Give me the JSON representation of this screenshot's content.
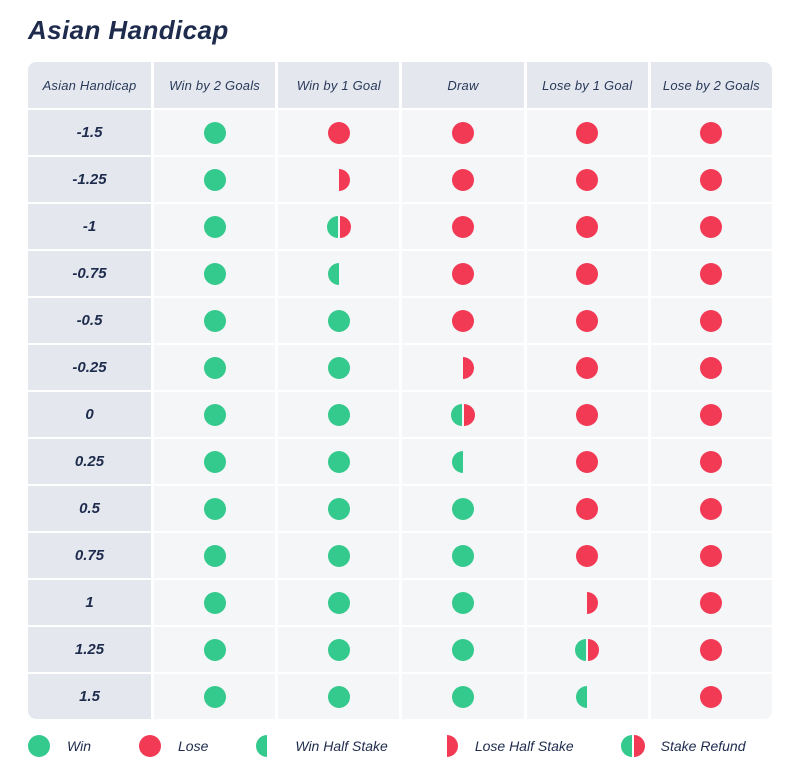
{
  "title": "Asian Handicap",
  "colors": {
    "win_green": "#34c98d",
    "lose_red": "#f23a55",
    "text_navy": "#1e2b4d",
    "header_bg": "#e4e8ee",
    "cell_bg": "#f5f6f8"
  },
  "chart_data": {
    "type": "table",
    "title": "Asian Handicap",
    "columns": [
      "Asian Handicap",
      "Win by 2 Goals",
      "Win by 1 Goal",
      "Draw",
      "Lose by 1 Goal",
      "Lose by 2 Goals"
    ],
    "outcome_values": [
      "win",
      "lose",
      "win-half",
      "lose-half",
      "refund"
    ],
    "rows": [
      {
        "handicap": "-1.5",
        "outcomes": [
          "win",
          "lose",
          "lose",
          "lose",
          "lose"
        ]
      },
      {
        "handicap": "-1.25",
        "outcomes": [
          "win",
          "lose-half",
          "lose",
          "lose",
          "lose"
        ]
      },
      {
        "handicap": "-1",
        "outcomes": [
          "win",
          "refund",
          "lose",
          "lose",
          "lose"
        ]
      },
      {
        "handicap": "-0.75",
        "outcomes": [
          "win",
          "win-half",
          "lose",
          "lose",
          "lose"
        ]
      },
      {
        "handicap": "-0.5",
        "outcomes": [
          "win",
          "win",
          "lose",
          "lose",
          "lose"
        ]
      },
      {
        "handicap": "-0.25",
        "outcomes": [
          "win",
          "win",
          "lose-half",
          "lose",
          "lose"
        ]
      },
      {
        "handicap": "0",
        "outcomes": [
          "win",
          "win",
          "refund",
          "lose",
          "lose"
        ]
      },
      {
        "handicap": "0.25",
        "outcomes": [
          "win",
          "win",
          "win-half",
          "lose",
          "lose"
        ]
      },
      {
        "handicap": "0.5",
        "outcomes": [
          "win",
          "win",
          "win",
          "lose",
          "lose"
        ]
      },
      {
        "handicap": "0.75",
        "outcomes": [
          "win",
          "win",
          "win",
          "lose",
          "lose"
        ]
      },
      {
        "handicap": "1",
        "outcomes": [
          "win",
          "win",
          "win",
          "lose-half",
          "lose"
        ]
      },
      {
        "handicap": "1.25",
        "outcomes": [
          "win",
          "win",
          "win",
          "refund",
          "lose"
        ]
      },
      {
        "handicap": "1.5",
        "outcomes": [
          "win",
          "win",
          "win",
          "win-half",
          "lose"
        ]
      }
    ],
    "legend_position": "bottom"
  },
  "legend": [
    {
      "icon": "win",
      "label": "Win"
    },
    {
      "icon": "lose",
      "label": "Lose"
    },
    {
      "icon": "win-half",
      "label": "Win Half Stake"
    },
    {
      "icon": "lose-half",
      "label": "Lose Half Stake"
    },
    {
      "icon": "refund",
      "label": "Stake Refund"
    }
  ]
}
